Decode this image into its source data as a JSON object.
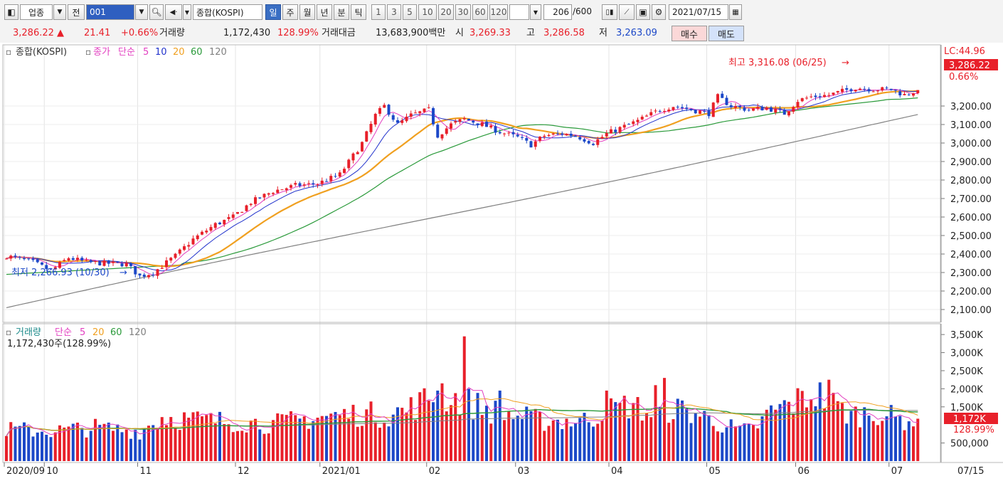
{
  "toolbar": {
    "market_type": "업종",
    "prev_label": "전",
    "code_value": "001",
    "index_name": "종합(KOSPI)",
    "period_tabs": [
      "일",
      "주",
      "월",
      "년",
      "분",
      "틱"
    ],
    "selected_period": "일",
    "intervals": [
      "1",
      "3",
      "5",
      "10",
      "20",
      "30",
      "60",
      "120"
    ],
    "count_value": "206",
    "count_total": "/600",
    "date_value": "2021/07/15"
  },
  "quote": {
    "price": "3,286.22",
    "change": "21.41",
    "change_pct": "+0.66%",
    "volume_label": "거래량",
    "volume_value": "1,172,430",
    "volume_ratio": "128.99%",
    "amount_label": "거래대금",
    "amount_value": "13,683,900백만",
    "open_label": "시",
    "open_value": "3,269.33",
    "high_label": "고",
    "high_value": "3,286.58",
    "low_label": "저",
    "low_value": "3,263.09",
    "buy_label": "매수",
    "sell_label": "매도"
  },
  "colors": {
    "up": "#e8202a",
    "down": "#1c48c8",
    "ma5": "#e23fc0",
    "ma10": "#2233cc",
    "ma20": "#f0a020",
    "ma60": "#2a9a3a",
    "ma120": "#808080"
  },
  "chart_data": [
    {
      "type": "candlestick",
      "legend": {
        "title": "종합(KOSPI)",
        "close_label": "종가",
        "method": "단순",
        "periods": [
          "5",
          "10",
          "20",
          "60",
          "120"
        ]
      },
      "y_ticks": [
        "3,200.00",
        "3,100.00",
        "3,000.00",
        "2,900.00",
        "2,800.00",
        "2,700.00",
        "2,600.00",
        "2,500.00",
        "2,400.00",
        "2,300.00",
        "2,200.00",
        "2,100.00"
      ],
      "ylim": [
        2050,
        3350
      ],
      "x_labels": [
        "2020/09",
        "10",
        "11",
        "12",
        "2021/01",
        "02",
        "03",
        "04",
        "05",
        "06",
        "07"
      ],
      "last_date_label": "07/15",
      "lc_label": "LC:44.96",
      "last_price_label": "3,286.22",
      "last_change_label": "0.66%",
      "high_annotation": "최고 3,316.08 (06/25)",
      "low_annotation": "최저 2,266.93 (10/30)",
      "trend_anchors": [
        [
          0,
          2390
        ],
        [
          6,
          2355
        ],
        [
          10,
          2310
        ],
        [
          14,
          2380
        ],
        [
          18,
          2355
        ],
        [
          22,
          2350
        ],
        [
          27,
          2345
        ],
        [
          30,
          2280
        ],
        [
          33,
          2300
        ],
        [
          38,
          2390
        ],
        [
          42,
          2480
        ],
        [
          47,
          2560
        ],
        [
          51,
          2600
        ],
        [
          55,
          2680
        ],
        [
          60,
          2740
        ],
        [
          65,
          2770
        ],
        [
          70,
          2780
        ],
        [
          75,
          2830
        ],
        [
          80,
          3000
        ],
        [
          83,
          3150
        ],
        [
          85,
          3200
        ],
        [
          88,
          3100
        ],
        [
          91,
          3150
        ],
        [
          95,
          3180
        ],
        [
          97,
          3040
        ],
        [
          100,
          3100
        ],
        [
          103,
          3130
        ],
        [
          107,
          3100
        ],
        [
          111,
          3060
        ],
        [
          115,
          3030
        ],
        [
          118,
          2990
        ],
        [
          121,
          3040
        ],
        [
          125,
          3050
        ],
        [
          128,
          3040
        ],
        [
          132,
          3000
        ],
        [
          135,
          3050
        ],
        [
          138,
          3080
        ],
        [
          142,
          3120
        ],
        [
          147,
          3180
        ],
        [
          150,
          3200
        ],
        [
          154,
          3180
        ],
        [
          158,
          3160
        ],
        [
          160,
          3250
        ],
        [
          163,
          3200
        ],
        [
          167,
          3180
        ],
        [
          171,
          3190
        ],
        [
          175,
          3160
        ],
        [
          178,
          3230
        ],
        [
          181,
          3250
        ],
        [
          185,
          3260
        ],
        [
          188,
          3280
        ],
        [
          191,
          3300
        ],
        [
          195,
          3290
        ],
        [
          199,
          3290
        ],
        [
          202,
          3260
        ],
        [
          205,
          3286
        ]
      ]
    },
    {
      "type": "bar",
      "legend": {
        "title": "거래량",
        "method": "단순",
        "periods": [
          "5",
          "20",
          "60",
          "120"
        ]
      },
      "current_label": "1,172,430주(128.99%)",
      "y_ticks": [
        "3,500K",
        "3,000K",
        "2,500K",
        "2,000K",
        "1,500K",
        "500,000"
      ],
      "ylim": [
        0,
        3700
      ],
      "last_volume_label": "1,172K",
      "last_ratio_label": "128.99%",
      "volume_anchors": [
        [
          0,
          900
        ],
        [
          10,
          850
        ],
        [
          20,
          950
        ],
        [
          30,
          850
        ],
        [
          35,
          1250
        ],
        [
          45,
          1150
        ],
        [
          55,
          1100
        ],
        [
          60,
          1050
        ],
        [
          70,
          1250
        ],
        [
          75,
          1300
        ],
        [
          80,
          1350
        ],
        [
          85,
          1300
        ],
        [
          90,
          1450
        ],
        [
          97,
          1900
        ],
        [
          103,
          1700
        ],
        [
          110,
          1400
        ],
        [
          120,
          1150
        ],
        [
          130,
          1150
        ],
        [
          135,
          1400
        ],
        [
          140,
          1600
        ],
        [
          145,
          1350
        ],
        [
          150,
          1500
        ],
        [
          155,
          1350
        ],
        [
          160,
          1100
        ],
        [
          165,
          850
        ],
        [
          168,
          900
        ],
        [
          172,
          1400
        ],
        [
          178,
          1700
        ],
        [
          182,
          1950
        ],
        [
          186,
          1600
        ],
        [
          190,
          1300
        ],
        [
          196,
          1400
        ],
        [
          200,
          1200
        ],
        [
          205,
          1170
        ]
      ],
      "volume_spikes": [
        [
          97,
          1950
        ],
        [
          98,
          2150
        ],
        [
          103,
          3450
        ],
        [
          104,
          2000
        ],
        [
          111,
          1950
        ],
        [
          135,
          1950
        ],
        [
          146,
          2100
        ],
        [
          148,
          2300
        ],
        [
          185,
          2250
        ]
      ]
    }
  ]
}
